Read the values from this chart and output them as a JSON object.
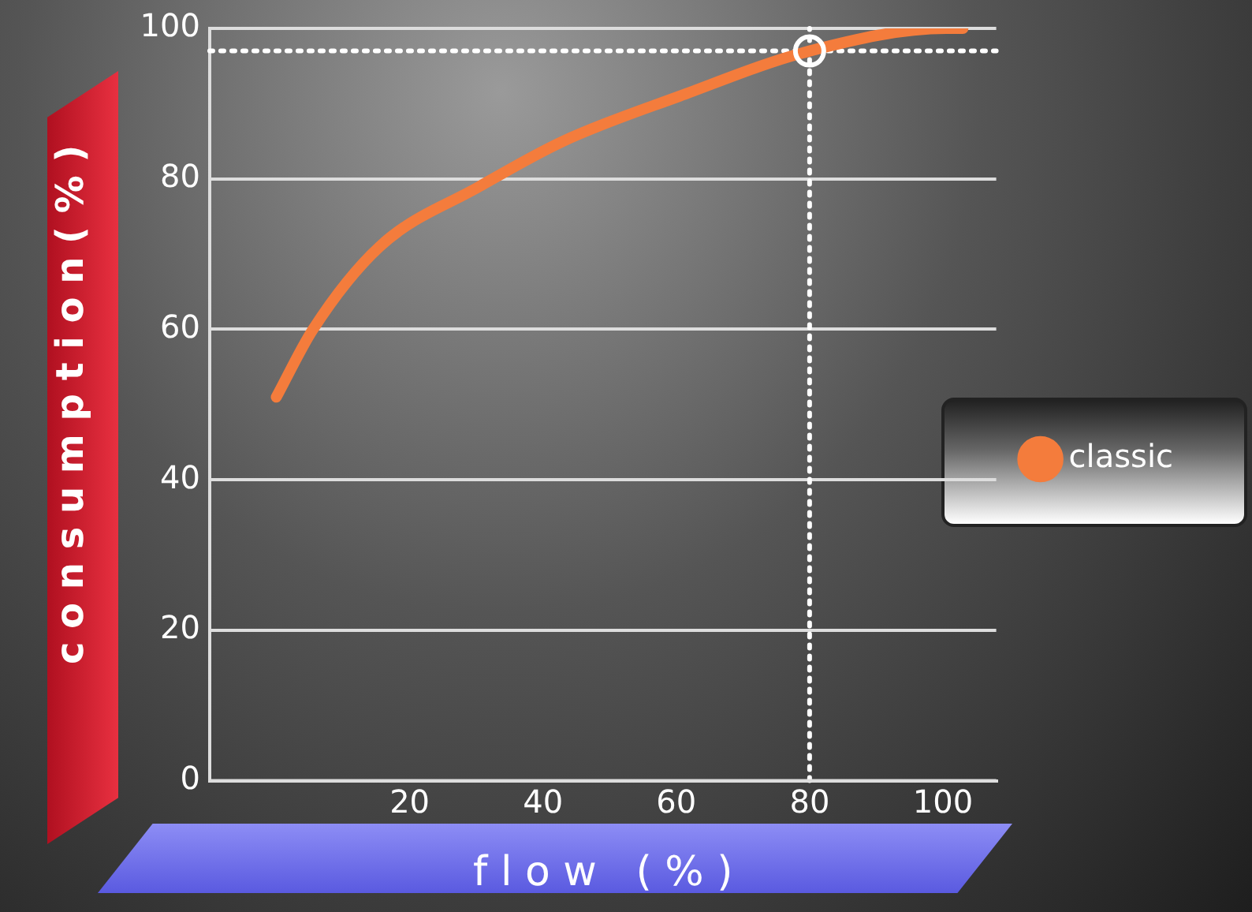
{
  "chart_data": {
    "type": "line",
    "xlabel": "f l o w   ( % )",
    "ylabel": "c o n s u m p t i o n ( % )",
    "series": [
      {
        "name": "classic",
        "color": "#f47c3c",
        "x": [
          0,
          5.5,
          15.5,
          30.5,
          43,
          60.5,
          80,
          100.5,
          103
        ],
        "values": [
          51,
          60,
          71,
          79,
          85,
          91,
          97,
          100,
          100
        ]
      },
      {
        "type": "scatter",
        "color": "#ffffff",
        "x": [
          80
        ],
        "values": [
          97
        ],
        "marker": "circle"
      }
    ],
    "xlim": [
      -10,
      108
    ],
    "xticks": [
      20,
      40,
      60,
      80,
      100
    ],
    "ylim": [
      0,
      100
    ],
    "yticks": [
      0,
      20,
      40,
      60,
      80,
      100
    ],
    "grid": "y",
    "legend": "right",
    "ref_lines": [
      {
        "axis": "x",
        "value": 80,
        "line_style": "dotted",
        "color": "#ffffff"
      },
      {
        "axis": "y",
        "value": 97,
        "line_style": "dotted",
        "color": "#ffffff"
      }
    ]
  }
}
